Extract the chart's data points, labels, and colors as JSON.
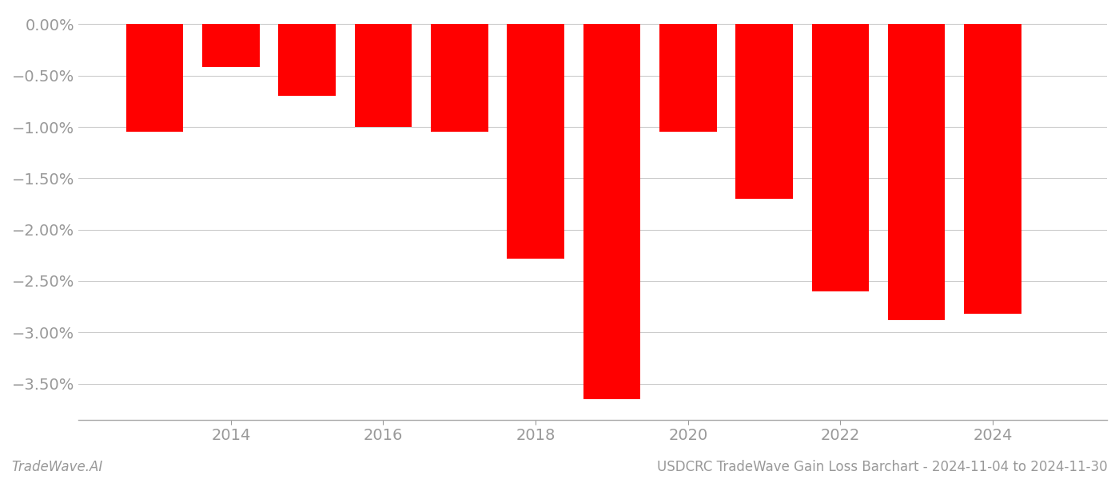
{
  "years": [
    2013,
    2014,
    2015,
    2016,
    2017,
    2018,
    2019,
    2020,
    2021,
    2022,
    2023,
    2024
  ],
  "values": [
    -1.05,
    -0.42,
    -0.7,
    -1.0,
    -1.05,
    -2.28,
    -3.65,
    -1.05,
    -1.7,
    -2.6,
    -2.88,
    -2.82
  ],
  "bar_color": "#ff0000",
  "ylim": [
    -3.85,
    0.12
  ],
  "yticks": [
    0.0,
    -0.5,
    -1.0,
    -1.5,
    -2.0,
    -2.5,
    -3.0,
    -3.5
  ],
  "ytick_labels": [
    "0.00%",
    "−0.50%",
    "−1.00%",
    "−1.50%",
    "−2.00%",
    "−2.50%",
    "−3.00%",
    "−3.50%"
  ],
  "xticks": [
    2014,
    2016,
    2018,
    2020,
    2022,
    2024
  ],
  "tick_color": "#999999",
  "grid_color": "#cccccc",
  "spine_color": "#aaaaaa",
  "footer_left": "TradeWave.AI",
  "footer_right": "USDCRC TradeWave Gain Loss Barchart - 2024-11-04 to 2024-11-30",
  "tick_fontsize": 14,
  "footer_fontsize": 12,
  "background_color": "#ffffff",
  "xlim": [
    2012.0,
    2025.5
  ],
  "bar_width": 0.75
}
